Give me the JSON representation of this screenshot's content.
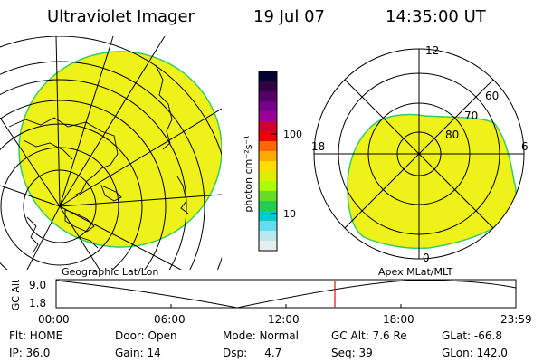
{
  "header": {
    "title": "Ultraviolet Imager",
    "date": "19 Jul 07",
    "time": "14:35:00 UT"
  },
  "colorbar": {
    "unit_label": "photon cm⁻²s⁻¹",
    "tick_100": "100",
    "tick_10": "10",
    "colors": [
      "#000033",
      "#330044",
      "#550066",
      "#770088",
      "#990099",
      "#cc0033",
      "#ee0000",
      "#ff6600",
      "#ffaa00",
      "#ffdd00",
      "#ddee00",
      "#aaff00",
      "#66dd22",
      "#22cc55",
      "#00cccc",
      "#66ddee",
      "#bbe8ee",
      "#e6eef0"
    ]
  },
  "polar_plot": {
    "mlt_labels": {
      "top": "12",
      "left": "18",
      "right": "6",
      "bottom": "0"
    },
    "lat_labels": [
      "60",
      "70",
      "80"
    ],
    "fill_color": "#eef219",
    "edge_color": "#33cc66"
  },
  "geo_plot": {
    "fill_color": "#eef219",
    "edge_color": "#33cc66"
  },
  "altitude_panel": {
    "left_title": "Geographic Lat/Lon",
    "right_title": "Apex MLat/MLT",
    "y_label": "GC Alt",
    "y_ticks": [
      "9.0",
      "1.8"
    ],
    "x_ticks": [
      "00:00",
      "06:00",
      "12:00",
      "18:00",
      "23:59"
    ],
    "marker_color": "#dd1111",
    "marker_time_hours": 14.5833
  },
  "status": {
    "row1": {
      "flt": "Flt: HOME",
      "door": "Door: Open",
      "mode": "Mode: Normal",
      "gcalt": "GC Alt: 7.6 Re",
      "glat": "GLat: -66.8"
    },
    "row2": {
      "ip": "IP: 36.0",
      "gain": "Gain: 14",
      "dsp": "Dsp:     4.7",
      "seq": "Seq: 39",
      "glon": "GLon: 142.0"
    }
  }
}
